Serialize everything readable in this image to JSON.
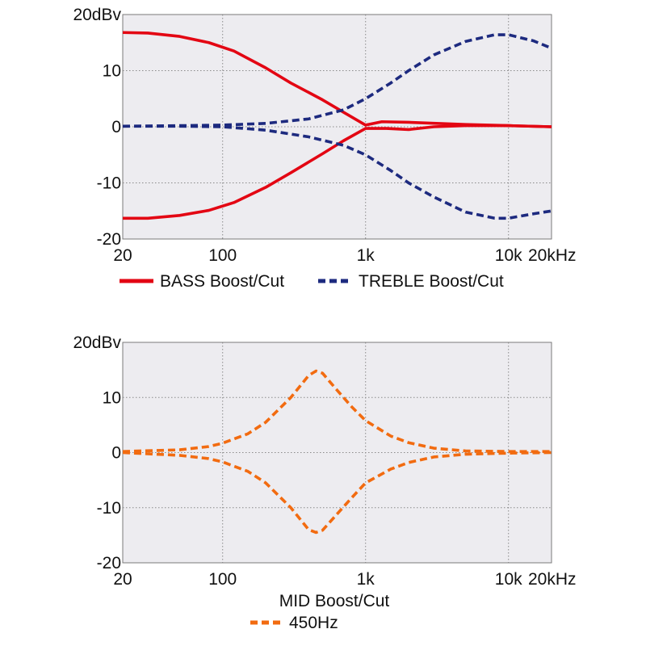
{
  "colors": {
    "bass": "#e30613",
    "treble": "#1d2a7f",
    "mid": "#f26b10",
    "plot_bg": "#edecf0",
    "grid": "#8a8a8a"
  },
  "chart_data": [
    {
      "type": "line",
      "x_scale": "log",
      "xlim": [
        20,
        20000
      ],
      "ylim": [
        -20,
        20
      ],
      "grid": true,
      "legend_position": "bottom",
      "x_ticks": [
        {
          "value": 20,
          "label": "20"
        },
        {
          "value": 100,
          "label": "100"
        },
        {
          "value": 1000,
          "label": "1k"
        },
        {
          "value": 10000,
          "label": "10k"
        },
        {
          "value": 20000,
          "label": "20kHz"
        }
      ],
      "y_ticks": [
        {
          "value": 20,
          "label": "20dBv"
        },
        {
          "value": 10,
          "label": "10"
        },
        {
          "value": 0,
          "label": "0"
        },
        {
          "value": -10,
          "label": "-10"
        },
        {
          "value": -20,
          "label": "-20"
        }
      ],
      "xlabel": "",
      "legend": [
        {
          "label": "BASS Boost/Cut",
          "color": "#e30613",
          "style": "solid"
        },
        {
          "label": "TREBLE Boost/Cut",
          "color": "#1d2a7f",
          "style": "dashed"
        }
      ],
      "series": [
        {
          "group": "BASS Boost/Cut",
          "color": "#e30613",
          "style": "solid",
          "points": [
            [
              20,
              16.8
            ],
            [
              30,
              16.7
            ],
            [
              50,
              16.1
            ],
            [
              80,
              15.0
            ],
            [
              120,
              13.5
            ],
            [
              200,
              10.5
            ],
            [
              300,
              7.8
            ],
            [
              500,
              4.8
            ],
            [
              700,
              2.6
            ],
            [
              1000,
              0.3
            ],
            [
              1300,
              0.9
            ],
            [
              2000,
              0.8
            ],
            [
              5000,
              0.4
            ],
            [
              10000,
              0.2
            ],
            [
              20000,
              0.0
            ]
          ]
        },
        {
          "group": "BASS Boost/Cut",
          "color": "#e30613",
          "style": "solid",
          "points": [
            [
              20,
              -16.3
            ],
            [
              30,
              -16.3
            ],
            [
              50,
              -15.8
            ],
            [
              80,
              -14.9
            ],
            [
              120,
              -13.5
            ],
            [
              200,
              -10.8
            ],
            [
              300,
              -8.2
            ],
            [
              500,
              -4.8
            ],
            [
              700,
              -2.5
            ],
            [
              1000,
              -0.3
            ],
            [
              1400,
              -0.3
            ],
            [
              2000,
              -0.5
            ],
            [
              3000,
              0.0
            ],
            [
              5000,
              0.2
            ],
            [
              10000,
              0.2
            ],
            [
              20000,
              0.0
            ]
          ]
        },
        {
          "group": "TREBLE Boost/Cut",
          "color": "#1d2a7f",
          "style": "dashed",
          "points": [
            [
              20,
              0.1
            ],
            [
              50,
              0.2
            ],
            [
              100,
              0.3
            ],
            [
              200,
              0.6
            ],
            [
              400,
              1.4
            ],
            [
              700,
              3.0
            ],
            [
              1000,
              5.0
            ],
            [
              1500,
              7.8
            ],
            [
              2000,
              10.0
            ],
            [
              3000,
              12.8
            ],
            [
              5000,
              15.2
            ],
            [
              8000,
              16.4
            ],
            [
              10000,
              16.4
            ],
            [
              15000,
              15.3
            ],
            [
              20000,
              14.0
            ]
          ]
        },
        {
          "group": "TREBLE Boost/Cut",
          "color": "#1d2a7f",
          "style": "dashed",
          "points": [
            [
              20,
              0.1
            ],
            [
              50,
              0.1
            ],
            [
              100,
              0.0
            ],
            [
              200,
              -0.6
            ],
            [
              400,
              -1.8
            ],
            [
              700,
              -3.3
            ],
            [
              1000,
              -5.0
            ],
            [
              1500,
              -7.8
            ],
            [
              2000,
              -10.0
            ],
            [
              3000,
              -12.5
            ],
            [
              5000,
              -15.2
            ],
            [
              8000,
              -16.3
            ],
            [
              10000,
              -16.3
            ],
            [
              15000,
              -15.5
            ],
            [
              20000,
              -15.0
            ]
          ]
        }
      ]
    },
    {
      "type": "line",
      "x_scale": "log",
      "xlim": [
        20,
        20000
      ],
      "ylim": [
        -20,
        20
      ],
      "grid": true,
      "legend_position": "bottom",
      "x_ticks": [
        {
          "value": 20,
          "label": "20"
        },
        {
          "value": 100,
          "label": "100"
        },
        {
          "value": 1000,
          "label": "1k"
        },
        {
          "value": 10000,
          "label": "10k"
        },
        {
          "value": 20000,
          "label": "20kHz"
        }
      ],
      "y_ticks": [
        {
          "value": 20,
          "label": "20dBv"
        },
        {
          "value": 10,
          "label": "10"
        },
        {
          "value": 0,
          "label": "0"
        },
        {
          "value": -10,
          "label": "-10"
        },
        {
          "value": -20,
          "label": "-20"
        }
      ],
      "xlabel": "MID Boost/Cut",
      "legend": [
        {
          "label": "450Hz",
          "color": "#f26b10",
          "style": "dashed"
        }
      ],
      "series": [
        {
          "group": "450Hz",
          "color": "#f26b10",
          "style": "dashed",
          "points": [
            [
              20,
              0.2
            ],
            [
              50,
              0.5
            ],
            [
              80,
              1.1
            ],
            [
              100,
              1.7
            ],
            [
              150,
              3.4
            ],
            [
              200,
              5.5
            ],
            [
              300,
              10.0
            ],
            [
              400,
              14.0
            ],
            [
              450,
              14.8
            ],
            [
              500,
              14.4
            ],
            [
              600,
              12.0
            ],
            [
              800,
              8.3
            ],
            [
              1000,
              5.8
            ],
            [
              1500,
              3.0
            ],
            [
              2000,
              1.8
            ],
            [
              3000,
              0.8
            ],
            [
              5000,
              0.3
            ],
            [
              10000,
              0.2
            ],
            [
              20000,
              0.2
            ]
          ]
        },
        {
          "group": "450Hz",
          "color": "#f26b10",
          "style": "dashed",
          "points": [
            [
              20,
              0.0
            ],
            [
              50,
              -0.5
            ],
            [
              80,
              -1.1
            ],
            [
              100,
              -1.7
            ],
            [
              150,
              -3.4
            ],
            [
              200,
              -5.5
            ],
            [
              300,
              -10.0
            ],
            [
              400,
              -14.0
            ],
            [
              450,
              -14.5
            ],
            [
              500,
              -14.1
            ],
            [
              600,
              -11.8
            ],
            [
              800,
              -8.2
            ],
            [
              1000,
              -5.5
            ],
            [
              1500,
              -3.0
            ],
            [
              2000,
              -1.8
            ],
            [
              3000,
              -0.8
            ],
            [
              5000,
              -0.3
            ],
            [
              10000,
              -0.1
            ],
            [
              20000,
              0.0
            ]
          ]
        }
      ]
    }
  ]
}
